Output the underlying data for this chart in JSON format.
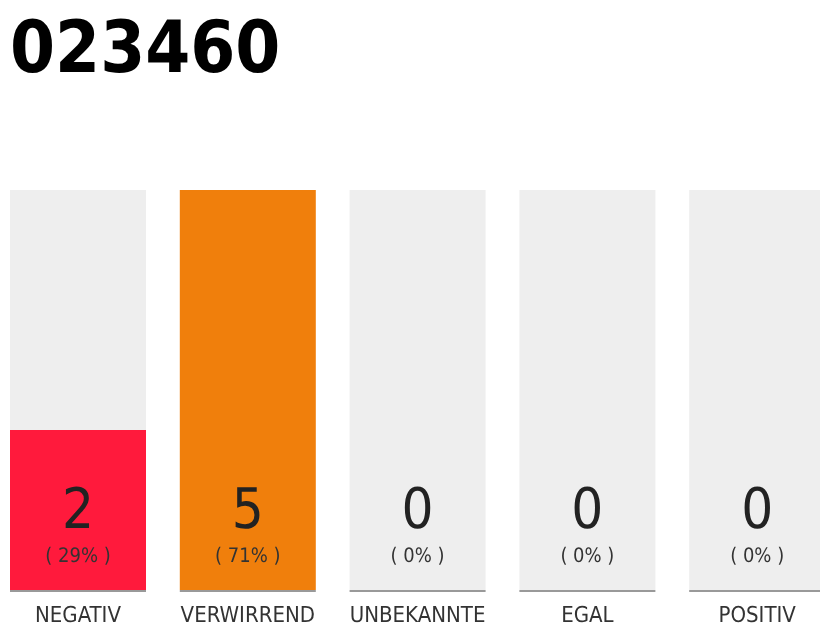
{
  "chart_data": {
    "type": "bar",
    "title": "023460",
    "categories": [
      "NEGATIV",
      "VERWIRREND",
      "UNBEKANNTE",
      "EGAL",
      "POSITIV"
    ],
    "stacked": true,
    "series": [
      {
        "colors": [
          "#ff1a3c",
          "#f07f0c",
          "#cccccc",
          "#cccccc",
          "#cccccc"
        ],
        "values": [
          2,
          5,
          0,
          0,
          0
        ],
        "value_labels": [
          "2",
          "5",
          null,
          null,
          null
        ]
      },
      {
        "color": "#eeeeee",
        "values": [
          3,
          0,
          5,
          5,
          5
        ]
      }
    ],
    "annotations": [
      "( 29% )",
      "( 71% )",
      "( 0% )",
      "( 0% )",
      "( 0% )",
      "0",
      "0",
      "0"
    ]
  }
}
